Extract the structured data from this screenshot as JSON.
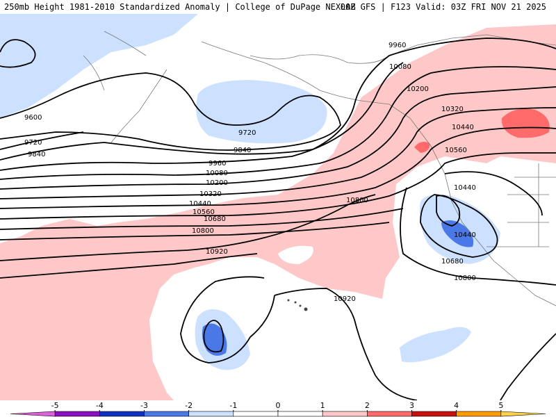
{
  "header": {
    "title_left": "250mb Height 1981-2010 Standardized Anomaly | College of DuPage NEXLAB",
    "title_right": "00Z GFS | F123 Valid: 03Z FRI NOV 21 2025"
  },
  "contour_labels": [
    "9600",
    "9720",
    "9840",
    "9720",
    "9840",
    "9960",
    "10080",
    "10200",
    "10320",
    "10440",
    "10560",
    "10680",
    "10800",
    "10920",
    "9960",
    "10080",
    "10200",
    "10320",
    "10440",
    "10560",
    "10440",
    "10440",
    "10680",
    "10800",
    "10800",
    "10920"
  ],
  "colorbar": {
    "ticks": [
      "-5",
      "-4",
      "-3",
      "-2",
      "-1",
      "0",
      "1",
      "2",
      "3",
      "4",
      "5"
    ],
    "colors": [
      "#e060e0",
      "#8a10c0",
      "#1030c0",
      "#4a78e6",
      "#cce0ff",
      "#ffffff",
      "#ffffff",
      "#ffc8c8",
      "#ff6a6a",
      "#c81010",
      "#ff9a00",
      "#ffd24a"
    ]
  }
}
